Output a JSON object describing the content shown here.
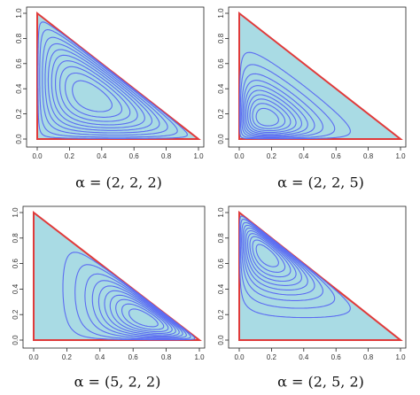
{
  "chart_data": [
    {
      "type": "contour",
      "alpha": [
        2,
        2,
        2
      ],
      "caption": "α = (2, 2, 2)",
      "xticks": [
        {
          "value": 0,
          "label": "0.0"
        },
        {
          "value": 0.2,
          "label": "0.2"
        },
        {
          "value": 0.4,
          "label": "0.4"
        },
        {
          "value": 0.6,
          "label": "0.6"
        },
        {
          "value": 0.8,
          "label": "0.8"
        },
        {
          "value": 1,
          "label": "1.0"
        }
      ],
      "yticks": [
        {
          "value": 0,
          "label": "0.0"
        },
        {
          "value": 0.2,
          "label": "0.2"
        },
        {
          "value": 0.4,
          "label": "0.4"
        },
        {
          "value": 0.6,
          "label": "0.6"
        },
        {
          "value": 0.8,
          "label": "0.8"
        },
        {
          "value": 1,
          "label": "1.0"
        }
      ]
    },
    {
      "type": "contour",
      "alpha": [
        2,
        2,
        5
      ],
      "caption": "α = (2, 2, 5)",
      "xticks": [
        {
          "value": 0,
          "label": "0.0"
        },
        {
          "value": 0.2,
          "label": "0.2"
        },
        {
          "value": 0.4,
          "label": "0.4"
        },
        {
          "value": 0.6,
          "label": "0.6"
        },
        {
          "value": 0.8,
          "label": "0.8"
        },
        {
          "value": 1,
          "label": "1.0"
        }
      ],
      "yticks": [
        {
          "value": 0,
          "label": "0.0"
        },
        {
          "value": 0.2,
          "label": "0.2"
        },
        {
          "value": 0.4,
          "label": "0.4"
        },
        {
          "value": 0.6,
          "label": "0.6"
        },
        {
          "value": 0.8,
          "label": "0.8"
        },
        {
          "value": 1,
          "label": "1.0"
        }
      ]
    },
    {
      "type": "contour",
      "alpha": [
        5,
        2,
        2
      ],
      "caption": "α = (5, 2, 2)",
      "xticks": [
        {
          "value": 0,
          "label": "0.0"
        },
        {
          "value": 0.2,
          "label": "0.2"
        },
        {
          "value": 0.4,
          "label": "0.4"
        },
        {
          "value": 0.6,
          "label": "0.6"
        },
        {
          "value": 0.8,
          "label": "0.8"
        },
        {
          "value": 1,
          "label": "1.0"
        }
      ],
      "yticks": [
        {
          "value": 0,
          "label": "0.0"
        },
        {
          "value": 0.2,
          "label": "0.2"
        },
        {
          "value": 0.4,
          "label": "0.4"
        },
        {
          "value": 0.6,
          "label": "0.6"
        },
        {
          "value": 0.8,
          "label": "0.8"
        },
        {
          "value": 1,
          "label": "1.0"
        }
      ]
    },
    {
      "type": "contour",
      "alpha": [
        2,
        5,
        2
      ],
      "caption": "α = (2, 5, 2)",
      "xticks": [
        {
          "value": 0,
          "label": "0.0"
        },
        {
          "value": 0.2,
          "label": "0.2"
        },
        {
          "value": 0.4,
          "label": "0.4"
        },
        {
          "value": 0.6,
          "label": "0.6"
        },
        {
          "value": 0.8,
          "label": "0.8"
        },
        {
          "value": 1,
          "label": "1.0"
        }
      ],
      "yticks": [
        {
          "value": 0,
          "label": "0.0"
        },
        {
          "value": 0.2,
          "label": "0.2"
        },
        {
          "value": 0.4,
          "label": "0.4"
        },
        {
          "value": 0.6,
          "label": "0.6"
        },
        {
          "value": 0.8,
          "label": "0.8"
        },
        {
          "value": 1,
          "label": "1.0"
        }
      ]
    }
  ]
}
